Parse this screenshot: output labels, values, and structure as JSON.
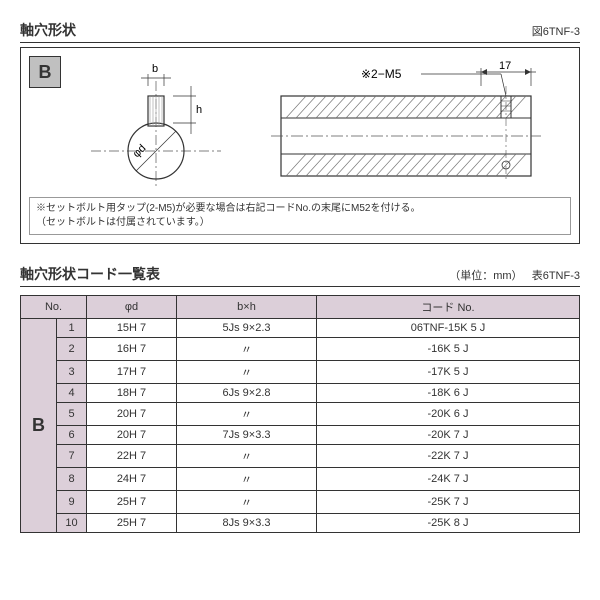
{
  "diagram": {
    "title": "軸穴形状",
    "fig_label": "図6TNF-3",
    "badge": "B",
    "label_b": "b",
    "label_h": "h",
    "label_phid": "φd",
    "label_2m5": "※2−M5",
    "label_17": "17",
    "note_line1": "※セットボルト用タップ(2-M5)が必要な場合は右記コードNo.の末尾にM52を付ける。",
    "note_line2": "（セットボルトは付属されています。）",
    "colors": {
      "border": "#333333",
      "hatch": "#777777",
      "badge_bg": "#c0c0c0",
      "dashline": "#555555"
    }
  },
  "table": {
    "title": "軸穴形状コード一覧表",
    "unit_label": "（単位：mm）",
    "table_label": "表6TNF-3",
    "category": "B",
    "columns": [
      "No.",
      "φd",
      "b×h",
      "コード No."
    ],
    "rows": [
      {
        "no": "1",
        "phid": "15H 7",
        "bxh": "5Js 9×2.3",
        "code": "06TNF-15K 5 J"
      },
      {
        "no": "2",
        "phid": "16H 7",
        "bxh": "〃",
        "code": "-16K 5 J"
      },
      {
        "no": "3",
        "phid": "17H 7",
        "bxh": "〃",
        "code": "-17K 5 J"
      },
      {
        "no": "4",
        "phid": "18H 7",
        "bxh": "6Js 9×2.8",
        "code": "-18K 6 J"
      },
      {
        "no": "5",
        "phid": "20H 7",
        "bxh": "〃",
        "code": "-20K 6 J"
      },
      {
        "no": "6",
        "phid": "20H 7",
        "bxh": "7Js 9×3.3",
        "code": "-20K 7 J"
      },
      {
        "no": "7",
        "phid": "22H 7",
        "bxh": "〃",
        "code": "-22K 7 J"
      },
      {
        "no": "8",
        "phid": "24H 7",
        "bxh": "〃",
        "code": "-24K 7 J"
      },
      {
        "no": "9",
        "phid": "25H 7",
        "bxh": "〃",
        "code": "-25K 7 J"
      },
      {
        "no": "10",
        "phid": "25H 7",
        "bxh": "8Js 9×3.3",
        "code": "-25K 8 J"
      }
    ],
    "colors": {
      "header_bg": "#dccfd9",
      "border": "#333333"
    }
  }
}
